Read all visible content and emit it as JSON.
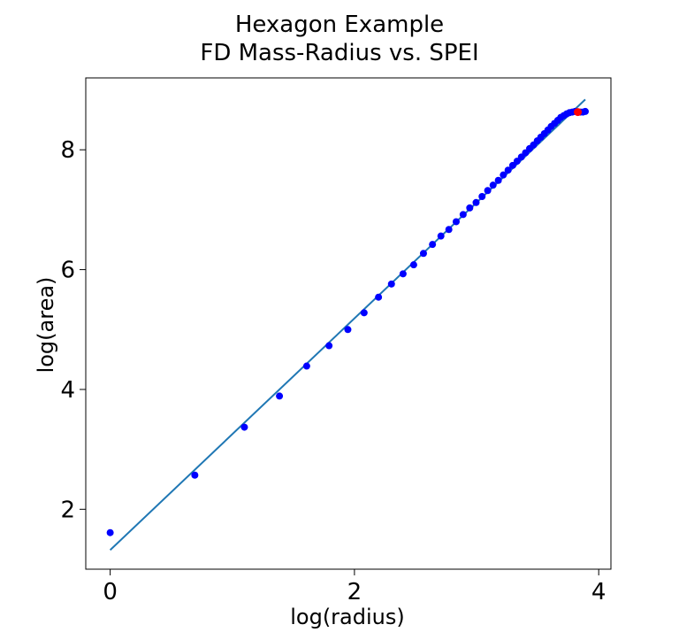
{
  "chart_data": {
    "type": "scatter",
    "title_lines": [
      "Hexagon Example",
      "FD Mass-Radius vs. SPEI"
    ],
    "xlabel": "log(radius)",
    "ylabel": "log(area)",
    "xlim": [
      -0.2,
      4.1
    ],
    "ylim": [
      1.0,
      9.2
    ],
    "xticks": [
      0,
      2,
      4
    ],
    "yticks": [
      2,
      4,
      6,
      8
    ],
    "grid": false,
    "colors": {
      "points": "#0000ff",
      "highlight": "#ff0000",
      "fit": "#1f77b4"
    },
    "points": [
      [
        0.0,
        1.61
      ],
      [
        0.693,
        2.57
      ],
      [
        1.099,
        3.37
      ],
      [
        1.386,
        3.89
      ],
      [
        1.609,
        4.39
      ],
      [
        1.792,
        4.73
      ],
      [
        1.946,
        5.0
      ],
      [
        2.079,
        5.28
      ],
      [
        2.197,
        5.54
      ],
      [
        2.303,
        5.76
      ],
      [
        2.398,
        5.93
      ],
      [
        2.485,
        6.08
      ],
      [
        2.565,
        6.27
      ],
      [
        2.639,
        6.42
      ],
      [
        2.708,
        6.56
      ],
      [
        2.773,
        6.67
      ],
      [
        2.833,
        6.8
      ],
      [
        2.89,
        6.92
      ],
      [
        2.944,
        7.03
      ],
      [
        2.996,
        7.12
      ],
      [
        3.045,
        7.22
      ],
      [
        3.091,
        7.32
      ],
      [
        3.135,
        7.41
      ],
      [
        3.178,
        7.49
      ],
      [
        3.219,
        7.58
      ],
      [
        3.258,
        7.66
      ],
      [
        3.296,
        7.74
      ],
      [
        3.332,
        7.81
      ],
      [
        3.367,
        7.88
      ],
      [
        3.401,
        7.95
      ],
      [
        3.434,
        8.02
      ],
      [
        3.466,
        8.08
      ],
      [
        3.497,
        8.15
      ],
      [
        3.526,
        8.21
      ],
      [
        3.555,
        8.27
      ],
      [
        3.584,
        8.33
      ],
      [
        3.611,
        8.39
      ],
      [
        3.638,
        8.44
      ],
      [
        3.664,
        8.49
      ],
      [
        3.689,
        8.54
      ],
      [
        3.714,
        8.57
      ],
      [
        3.738,
        8.6
      ],
      [
        3.761,
        8.62
      ],
      [
        3.784,
        8.63
      ],
      [
        3.807,
        8.64
      ],
      [
        3.85,
        8.63
      ],
      [
        3.871,
        8.63
      ],
      [
        3.89,
        8.64
      ]
    ],
    "highlight_point": [
      3.829,
      8.63
    ],
    "fit_line": {
      "x": [
        0.0,
        3.89
      ],
      "y": [
        1.32,
        8.84
      ]
    },
    "model_curve": [
      [
        3.6,
        8.38
      ],
      [
        3.65,
        8.46
      ],
      [
        3.7,
        8.54
      ],
      [
        3.75,
        8.6
      ],
      [
        3.8,
        8.64
      ],
      [
        3.85,
        8.65
      ],
      [
        3.89,
        8.65
      ]
    ]
  }
}
